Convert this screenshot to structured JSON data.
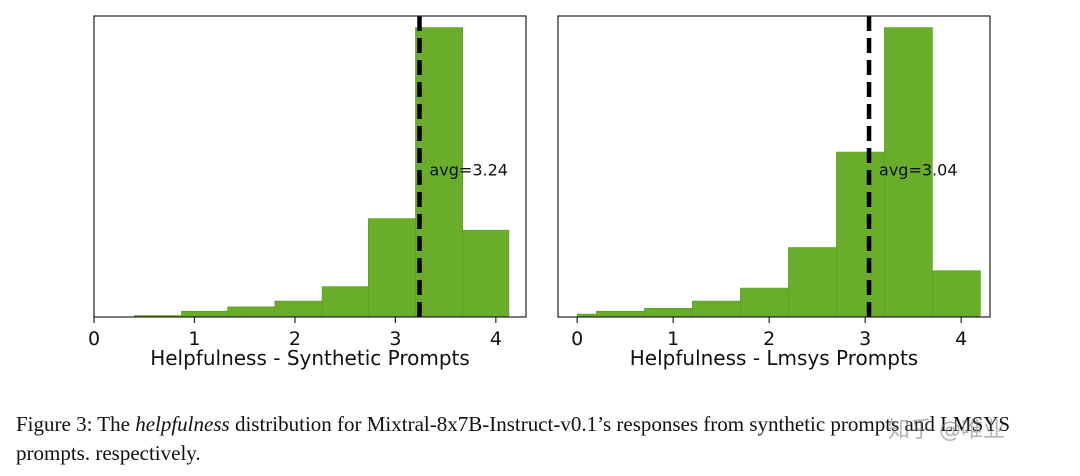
{
  "colors": {
    "bar": "#6aad2a",
    "bar_edge": "#5a9a1f",
    "mean_line": "#000000"
  },
  "chart_data": [
    {
      "type": "bar",
      "name": "synthetic",
      "xlabel": "Helpfulness - Synthetic Prompts",
      "ylabel": "",
      "xlim": [
        0,
        4.3
      ],
      "ylim": [
        0,
        1.04
      ],
      "xticks": [
        0,
        1,
        2,
        3,
        4
      ],
      "bins": [
        {
          "x0": 0.4,
          "x1": 0.87,
          "value": 0.005
        },
        {
          "x0": 0.87,
          "x1": 1.33,
          "value": 0.02
        },
        {
          "x0": 1.33,
          "x1": 1.8,
          "value": 0.035
        },
        {
          "x0": 1.8,
          "x1": 2.27,
          "value": 0.055
        },
        {
          "x0": 2.27,
          "x1": 2.73,
          "value": 0.105
        },
        {
          "x0": 2.73,
          "x1": 3.2,
          "value": 0.34
        },
        {
          "x0": 3.2,
          "x1": 3.67,
          "value": 1.0
        },
        {
          "x0": 3.67,
          "x1": 4.13,
          "value": 0.3
        }
      ],
      "mean": 3.24,
      "annotation": "avg=3.24",
      "annotation_y": 0.51
    },
    {
      "type": "bar",
      "name": "lmsys",
      "xlabel": "Helpfulness - Lmsys Prompts",
      "ylabel": "",
      "xlim": [
        -0.2,
        4.3
      ],
      "ylim": [
        0,
        1.04
      ],
      "xticks": [
        0,
        1,
        2,
        3,
        4
      ],
      "bins": [
        {
          "x0": 0.0,
          "x1": 0.2,
          "value": 0.01
        },
        {
          "x0": 0.2,
          "x1": 0.7,
          "value": 0.02
        },
        {
          "x0": 0.7,
          "x1": 1.2,
          "value": 0.03
        },
        {
          "x0": 1.2,
          "x1": 1.7,
          "value": 0.055
        },
        {
          "x0": 1.7,
          "x1": 2.2,
          "value": 0.1
        },
        {
          "x0": 2.2,
          "x1": 2.7,
          "value": 0.24
        },
        {
          "x0": 2.7,
          "x1": 3.2,
          "value": 0.57
        },
        {
          "x0": 3.2,
          "x1": 3.7,
          "value": 1.0
        },
        {
          "x0": 3.7,
          "x1": 4.2,
          "value": 0.16
        }
      ],
      "mean": 3.04,
      "annotation": "avg=3.04",
      "annotation_y": 0.51
    }
  ],
  "caption": {
    "prefix": "Figure 3: The ",
    "emph": "helpfulness",
    "rest": " distribution for Mixtral-8x7B-Instruct-v0.1’s responses from synthetic prompts and LMSYS prompts. respectively."
  },
  "watermark": "知乎 @唯业"
}
